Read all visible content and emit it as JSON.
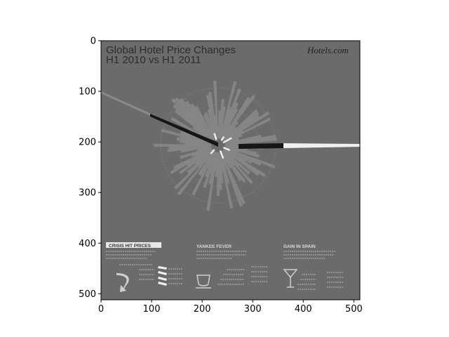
{
  "chart_data": {
    "type": "heatmap",
    "title": "",
    "xlabel": "",
    "ylabel": "",
    "xlim": [
      0,
      512
    ],
    "ylim": [
      512,
      0
    ],
    "x_ticks": [
      0,
      100,
      200,
      300,
      400,
      500
    ],
    "y_ticks": [
      0,
      100,
      200,
      300,
      400,
      500
    ],
    "grid": false,
    "colormap": "gray",
    "image_content": {
      "title_line1": "Global Hotel Price Changes",
      "title_line2": "H1 2010 vs H1 2011",
      "logo": "Hotels.com",
      "section1_heading": "CRISIS HIT PRICES",
      "section2_heading": "YANKEE FEVER",
      "section3_heading": "GAIN IN SPAIN"
    }
  },
  "colors": {
    "image_background": "#6b6b6b",
    "radial_bars": "#858585",
    "highlight_bars": "#f2f2f2",
    "dark_bar": "#151515"
  }
}
